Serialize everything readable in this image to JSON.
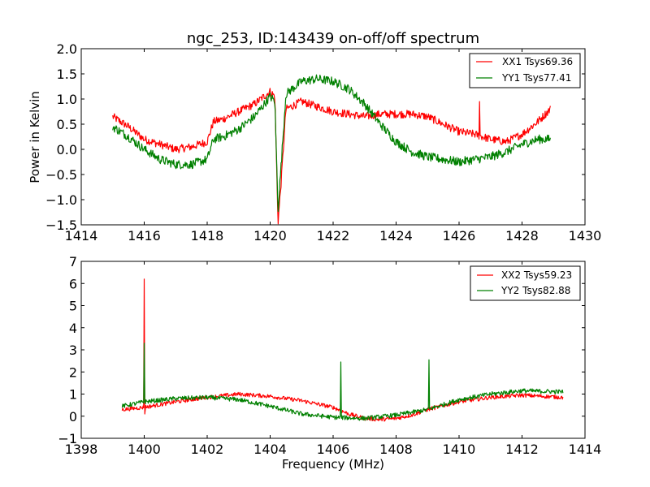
{
  "chart_data": [
    {
      "type": "line",
      "title": "ngc_253, ID:143439 on-off/off spectrum",
      "xlabel": "",
      "ylabel": "Power in Kelvin",
      "xlim": [
        1414,
        1430
      ],
      "ylim": [
        -1.5,
        2.0
      ],
      "xticks": [
        1414,
        1416,
        1418,
        1420,
        1422,
        1424,
        1426,
        1428,
        1430
      ],
      "xtick_labels": [
        "1414",
        "1416",
        "1418",
        "1420",
        "1422",
        "1424",
        "1426",
        "1428",
        "1430"
      ],
      "yticks": [
        -1.5,
        -1.0,
        -0.5,
        0.0,
        0.5,
        1.0,
        1.5,
        2.0
      ],
      "ytick_labels": [
        "−1.5",
        "−1.0",
        "−0.5",
        "0.0",
        "0.5",
        "1.0",
        "1.5",
        "2.0"
      ],
      "grid": false,
      "legend_position": "top-right",
      "series": [
        {
          "name": "XX1 Tsys69.36",
          "color": "#ff0000",
          "x_range": [
            1415.0,
            1428.9
          ],
          "noise": 0.08,
          "baseline": [
            [
              1415.0,
              0.65
            ],
            [
              1415.5,
              0.45
            ],
            [
              1416.0,
              0.2
            ],
            [
              1416.5,
              0.1
            ],
            [
              1417.0,
              0.0
            ],
            [
              1417.5,
              0.05
            ],
            [
              1418.0,
              0.15
            ],
            [
              1418.2,
              0.55
            ],
            [
              1418.5,
              0.6
            ],
            [
              1419.0,
              0.75
            ],
            [
              1419.5,
              0.9
            ],
            [
              1420.0,
              1.15
            ],
            [
              1420.15,
              1.05
            ],
            [
              1420.25,
              -1.45
            ],
            [
              1420.35,
              -0.65
            ],
            [
              1420.5,
              0.8
            ],
            [
              1421.0,
              0.95
            ],
            [
              1421.5,
              0.85
            ],
            [
              1422.0,
              0.75
            ],
            [
              1422.5,
              0.7
            ],
            [
              1423.0,
              0.65
            ],
            [
              1423.5,
              0.7
            ],
            [
              1424.0,
              0.7
            ],
            [
              1424.5,
              0.7
            ],
            [
              1425.0,
              0.65
            ],
            [
              1425.5,
              0.5
            ],
            [
              1426.0,
              0.35
            ],
            [
              1426.5,
              0.3
            ],
            [
              1427.0,
              0.2
            ],
            [
              1427.5,
              0.15
            ],
            [
              1428.0,
              0.3
            ],
            [
              1428.5,
              0.55
            ],
            [
              1428.9,
              0.8
            ]
          ],
          "spikes": [
            [
              1426.65,
              0.95
            ]
          ]
        },
        {
          "name": "YY1 Tsys77.41",
          "color": "#008000",
          "x_range": [
            1415.0,
            1428.9
          ],
          "noise": 0.09,
          "baseline": [
            [
              1415.0,
              0.45
            ],
            [
              1415.5,
              0.25
            ],
            [
              1416.0,
              0.0
            ],
            [
              1416.5,
              -0.2
            ],
            [
              1417.0,
              -0.3
            ],
            [
              1417.5,
              -0.3
            ],
            [
              1418.0,
              -0.2
            ],
            [
              1418.2,
              0.2
            ],
            [
              1418.5,
              0.25
            ],
            [
              1419.0,
              0.4
            ],
            [
              1419.5,
              0.65
            ],
            [
              1420.0,
              1.05
            ],
            [
              1420.15,
              0.95
            ],
            [
              1420.25,
              -1.2
            ],
            [
              1420.35,
              -0.3
            ],
            [
              1420.5,
              1.1
            ],
            [
              1421.0,
              1.35
            ],
            [
              1421.5,
              1.4
            ],
            [
              1422.0,
              1.35
            ],
            [
              1422.5,
              1.2
            ],
            [
              1423.0,
              0.9
            ],
            [
              1423.5,
              0.5
            ],
            [
              1424.0,
              0.15
            ],
            [
              1424.5,
              -0.05
            ],
            [
              1425.0,
              -0.15
            ],
            [
              1425.5,
              -0.2
            ],
            [
              1426.0,
              -0.25
            ],
            [
              1426.5,
              -0.2
            ],
            [
              1427.0,
              -0.15
            ],
            [
              1427.5,
              -0.05
            ],
            [
              1428.0,
              0.1
            ],
            [
              1428.5,
              0.2
            ],
            [
              1428.9,
              0.2
            ]
          ],
          "spikes": []
        }
      ]
    },
    {
      "type": "line",
      "title": "",
      "xlabel": "Frequency (MHz)",
      "ylabel": "",
      "xlim": [
        1398,
        1414
      ],
      "ylim": [
        -1,
        7
      ],
      "xticks": [
        1398,
        1400,
        1402,
        1404,
        1406,
        1408,
        1410,
        1412,
        1414
      ],
      "xtick_labels": [
        "1398",
        "1400",
        "1402",
        "1404",
        "1406",
        "1408",
        "1410",
        "1412",
        "1414"
      ],
      "yticks": [
        -1,
        0,
        1,
        2,
        3,
        4,
        5,
        6,
        7
      ],
      "ytick_labels": [
        "−1",
        "0",
        "1",
        "2",
        "3",
        "4",
        "5",
        "6",
        "7"
      ],
      "grid": false,
      "legend_position": "top-right",
      "series": [
        {
          "name": "XX2 Tsys59.23",
          "color": "#ff0000",
          "x_range": [
            1399.3,
            1413.3
          ],
          "noise": 0.09,
          "baseline": [
            [
              1399.3,
              0.3
            ],
            [
              1400.0,
              0.4
            ],
            [
              1401.0,
              0.65
            ],
            [
              1402.0,
              0.85
            ],
            [
              1403.0,
              1.0
            ],
            [
              1404.0,
              0.9
            ],
            [
              1405.0,
              0.7
            ],
            [
              1406.0,
              0.4
            ],
            [
              1406.5,
              0.1
            ],
            [
              1407.0,
              -0.1
            ],
            [
              1407.5,
              -0.15
            ],
            [
              1408.0,
              -0.1
            ],
            [
              1408.5,
              0.05
            ],
            [
              1409.0,
              0.3
            ],
            [
              1410.0,
              0.65
            ],
            [
              1411.0,
              0.85
            ],
            [
              1412.0,
              0.95
            ],
            [
              1413.3,
              0.85
            ]
          ],
          "spikes": [
            [
              1400.0,
              6.2
            ],
            [
              1400.02,
              0.1
            ]
          ]
        },
        {
          "name": "YY2 Tsys82.88",
          "color": "#008000",
          "x_range": [
            1399.3,
            1413.3
          ],
          "noise": 0.1,
          "baseline": [
            [
              1399.3,
              0.45
            ],
            [
              1400.0,
              0.65
            ],
            [
              1401.0,
              0.8
            ],
            [
              1402.0,
              0.85
            ],
            [
              1403.0,
              0.75
            ],
            [
              1404.0,
              0.45
            ],
            [
              1405.0,
              0.1
            ],
            [
              1406.0,
              -0.05
            ],
            [
              1407.0,
              -0.1
            ],
            [
              1408.0,
              0.05
            ],
            [
              1409.0,
              0.3
            ],
            [
              1410.0,
              0.75
            ],
            [
              1411.0,
              1.0
            ],
            [
              1412.0,
              1.15
            ],
            [
              1413.3,
              1.1
            ]
          ],
          "spikes": [
            [
              1400.0,
              3.3
            ],
            [
              1406.25,
              2.45
            ],
            [
              1409.05,
              2.55
            ]
          ]
        }
      ]
    }
  ]
}
